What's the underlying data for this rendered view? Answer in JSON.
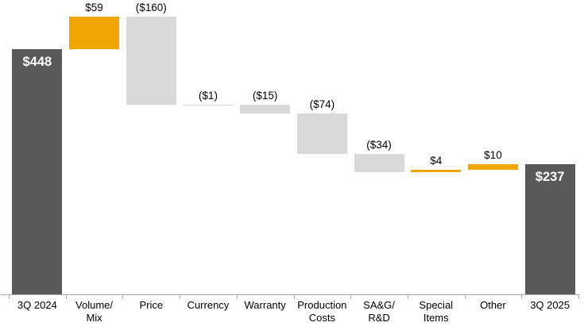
{
  "chart_data": {
    "type": "bar",
    "subtype": "waterfall",
    "categories": [
      "3Q 2024",
      "Volume/\nMix",
      "Price",
      "Currency",
      "Warranty",
      "Production\nCosts",
      "SA&G/\nR&D",
      "Special\nItems",
      "Other",
      "3Q 2025"
    ],
    "values": [
      448,
      59,
      -160,
      -1,
      -15,
      -74,
      -34,
      4,
      10,
      237
    ],
    "bar_types": [
      "total",
      "increase",
      "decrease",
      "decrease",
      "decrease",
      "decrease",
      "decrease",
      "increase",
      "increase",
      "total"
    ],
    "labels": [
      "$448",
      "$59",
      "($160)",
      "($1)",
      "($15)",
      "($74)",
      "($34)",
      "$4",
      "$10",
      "$237"
    ],
    "running_levels": [
      448,
      507,
      347,
      346,
      331,
      257,
      223,
      227,
      237,
      237
    ],
    "ylim": [
      0,
      507
    ],
    "grid": false,
    "legend": "none",
    "colors": {
      "total": "#595959",
      "increase": "#F0A500",
      "decrease": "#D9D9D9",
      "axis": "#A6A6A6",
      "value_label": "#000000",
      "total_label": "#FFFFFF"
    }
  }
}
